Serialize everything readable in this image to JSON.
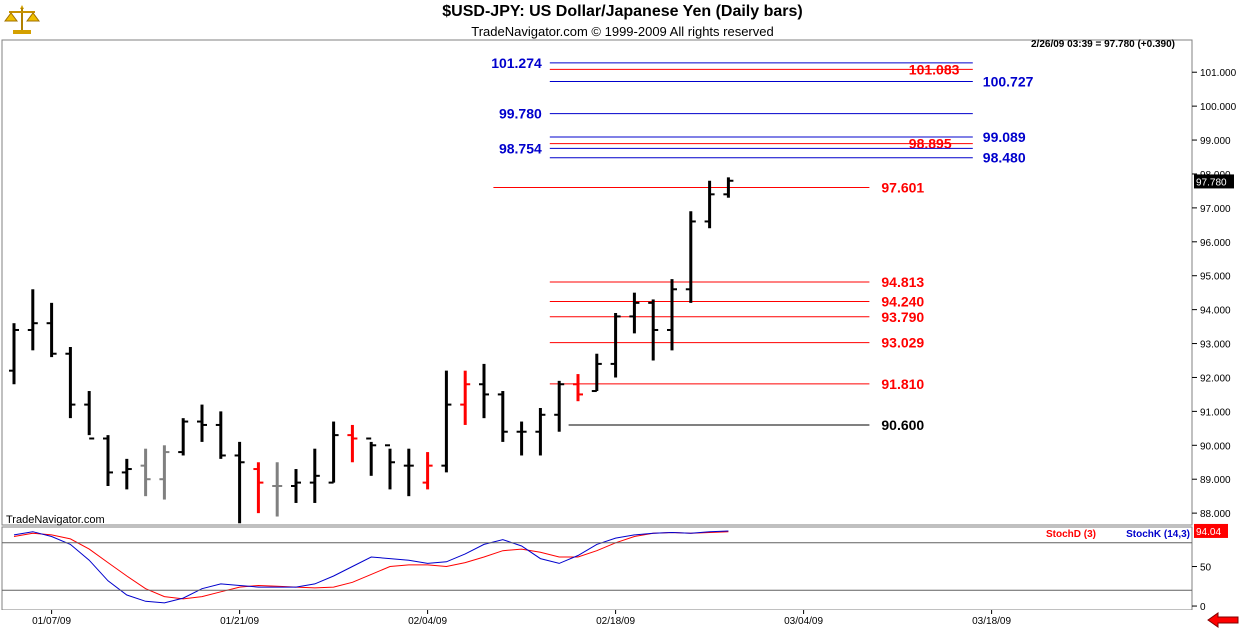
{
  "header": {
    "title": "$USD-JPY:  US Dollar/Japanese Yen  (Daily bars)",
    "copyright": "TradeNavigator.com © 1999-2009 All rights reserved",
    "quote": "2/26/09 03:39 = 97.780 (+0.390)",
    "watermark": "TradeNavigator.com",
    "logo_icon": "scale-icon"
  },
  "colors": {
    "up_bar": "#000000",
    "down_bar": "#000000",
    "red_bar": "#ff0000",
    "gray_bar": "#808080",
    "level_red": "#ff0000",
    "level_blue": "#0000cc",
    "level_black": "#000000",
    "stoch_d": "#ff0000",
    "stoch_k": "#0000cc"
  },
  "chart_data": [
    {
      "type": "ohlc",
      "name": "price",
      "ylim": [
        87.65,
        101.95
      ],
      "ytick_labels": [
        "88.000",
        "89.000",
        "90.000",
        "91.000",
        "92.000",
        "93.000",
        "94.000",
        "95.000",
        "96.000",
        "97.000",
        "98.000",
        "99.000",
        "100.000",
        "101.000"
      ],
      "yticks": [
        88,
        89,
        90,
        91,
        92,
        93,
        94,
        95,
        96,
        97,
        98,
        99,
        100,
        101
      ],
      "last_price_label": "97.780",
      "last_price": 97.78,
      "xtick_labels": [
        "01/07/09",
        "01/21/09",
        "02/04/09",
        "02/18/09",
        "03/04/09",
        "03/18/09"
      ],
      "xtick_index": [
        2,
        12,
        22,
        32,
        42,
        52
      ],
      "bars": [
        {
          "o": 92.2,
          "h": 93.6,
          "l": 91.8,
          "c": 93.4,
          "color": "black"
        },
        {
          "o": 93.4,
          "h": 94.6,
          "l": 92.8,
          "c": 93.6,
          "color": "black"
        },
        {
          "o": 93.6,
          "h": 94.2,
          "l": 92.6,
          "c": 92.7,
          "color": "black"
        },
        {
          "o": 92.7,
          "h": 92.9,
          "l": 90.8,
          "c": 91.2,
          "color": "black"
        },
        {
          "o": 91.2,
          "h": 91.6,
          "l": 90.3,
          "c": 90.2,
          "color": "black"
        },
        {
          "o": 90.2,
          "h": 90.3,
          "l": 88.8,
          "c": 89.2,
          "color": "black"
        },
        {
          "o": 89.2,
          "h": 89.6,
          "l": 88.7,
          "c": 89.3,
          "color": "black"
        },
        {
          "o": 89.4,
          "h": 89.9,
          "l": 88.5,
          "c": 89.0,
          "color": "gray"
        },
        {
          "o": 89.0,
          "h": 90.0,
          "l": 88.4,
          "c": 89.8,
          "color": "gray"
        },
        {
          "o": 89.8,
          "h": 90.8,
          "l": 89.7,
          "c": 90.7,
          "color": "black"
        },
        {
          "o": 90.7,
          "h": 91.2,
          "l": 90.1,
          "c": 90.6,
          "color": "black"
        },
        {
          "o": 90.6,
          "h": 91.0,
          "l": 89.6,
          "c": 89.7,
          "color": "black"
        },
        {
          "o": 89.7,
          "h": 90.1,
          "l": 87.7,
          "c": 89.5,
          "color": "black"
        },
        {
          "o": 89.3,
          "h": 89.5,
          "l": 88.0,
          "c": 88.9,
          "color": "red"
        },
        {
          "o": 88.8,
          "h": 89.5,
          "l": 87.9,
          "c": 88.8,
          "color": "gray"
        },
        {
          "o": 88.8,
          "h": 89.3,
          "l": 88.3,
          "c": 88.9,
          "color": "black"
        },
        {
          "o": 88.9,
          "h": 89.9,
          "l": 88.3,
          "c": 89.1,
          "color": "black"
        },
        {
          "o": 88.9,
          "h": 90.7,
          "l": 88.9,
          "c": 90.3,
          "color": "black"
        },
        {
          "o": 90.3,
          "h": 90.6,
          "l": 89.5,
          "c": 90.2,
          "color": "red"
        },
        {
          "o": 90.2,
          "h": 90.1,
          "l": 89.1,
          "c": 90.0,
          "color": "black"
        },
        {
          "o": 90.0,
          "h": 89.9,
          "l": 88.7,
          "c": 89.5,
          "color": "black"
        },
        {
          "o": 89.4,
          "h": 89.9,
          "l": 88.5,
          "c": 89.4,
          "color": "black"
        },
        {
          "o": 88.9,
          "h": 89.8,
          "l": 88.7,
          "c": 89.4,
          "color": "red"
        },
        {
          "o": 89.4,
          "h": 92.2,
          "l": 89.2,
          "c": 91.2,
          "color": "black"
        },
        {
          "o": 91.2,
          "h": 92.2,
          "l": 90.6,
          "c": 91.8,
          "color": "red"
        },
        {
          "o": 91.8,
          "h": 92.4,
          "l": 90.8,
          "c": 91.5,
          "color": "black"
        },
        {
          "o": 91.5,
          "h": 91.6,
          "l": 90.1,
          "c": 90.4,
          "color": "black"
        },
        {
          "o": 90.4,
          "h": 90.7,
          "l": 89.7,
          "c": 90.4,
          "color": "black"
        },
        {
          "o": 90.4,
          "h": 91.1,
          "l": 89.7,
          "c": 90.9,
          "color": "black"
        },
        {
          "o": 90.9,
          "h": 91.9,
          "l": 90.4,
          "c": 91.8,
          "color": "black"
        },
        {
          "o": 91.8,
          "h": 92.1,
          "l": 91.3,
          "c": 91.5,
          "color": "red"
        },
        {
          "o": 91.6,
          "h": 92.7,
          "l": 91.6,
          "c": 92.4,
          "color": "black"
        },
        {
          "o": 92.4,
          "h": 93.9,
          "l": 92.0,
          "c": 93.8,
          "color": "black"
        },
        {
          "o": 93.8,
          "h": 94.5,
          "l": 93.3,
          "c": 94.2,
          "color": "black"
        },
        {
          "o": 94.2,
          "h": 94.3,
          "l": 92.5,
          "c": 93.4,
          "color": "black"
        },
        {
          "o": 93.4,
          "h": 94.9,
          "l": 92.8,
          "c": 94.6,
          "color": "black"
        },
        {
          "o": 94.6,
          "h": 96.9,
          "l": 94.2,
          "c": 96.6,
          "color": "black"
        },
        {
          "o": 96.6,
          "h": 97.8,
          "l": 96.4,
          "c": 97.4,
          "color": "black"
        },
        {
          "o": 97.4,
          "h": 97.9,
          "l": 97.3,
          "c": 97.8,
          "color": "black"
        }
      ]
    },
    {
      "type": "line",
      "name": "stochastic",
      "ylim": [
        -5,
        100
      ],
      "ytick_labels": [
        "0",
        "50"
      ],
      "yticks": [
        0,
        50
      ],
      "ref_lines": [
        80,
        20
      ],
      "last_value_label": "94.04",
      "legend": [
        "StochD (3)",
        "StochK (14,3)"
      ],
      "series": [
        {
          "name": "StochD (3)",
          "values": [
            88,
            92,
            90,
            85,
            72,
            55,
            38,
            22,
            12,
            9,
            12,
            18,
            24,
            26,
            25,
            24,
            23,
            24,
            30,
            40,
            50,
            52,
            52,
            50,
            55,
            62,
            70,
            72,
            68,
            62,
            62,
            70,
            80,
            88,
            92,
            93,
            92,
            93,
            94
          ]
        },
        {
          "name": "StochK (14,3)",
          "values": [
            90,
            94,
            88,
            78,
            58,
            32,
            14,
            6,
            4,
            10,
            22,
            28,
            26,
            24,
            24,
            24,
            28,
            38,
            50,
            62,
            60,
            58,
            54,
            56,
            66,
            78,
            84,
            76,
            60,
            54,
            64,
            78,
            86,
            90,
            92,
            93,
            92,
            94,
            95
          ]
        }
      ]
    }
  ],
  "levels": [
    {
      "value": 101.274,
      "label": "101.274",
      "color": "blue",
      "x1": 28.5,
      "x2": 51.0,
      "label_side": "left"
    },
    {
      "value": 101.083,
      "label": "101.083",
      "color": "red",
      "x1": 28.5,
      "x2": 51.0,
      "label_side": "inside"
    },
    {
      "value": 100.727,
      "label": "100.727",
      "color": "blue",
      "x1": 28.5,
      "x2": 51.0,
      "label_side": "right"
    },
    {
      "value": 99.78,
      "label": "99.780",
      "color": "blue",
      "x1": 28.5,
      "x2": 51.0,
      "label_side": "left"
    },
    {
      "value": 99.089,
      "label": "99.089",
      "color": "blue",
      "x1": 28.5,
      "x2": 51.0,
      "label_side": "right"
    },
    {
      "value": 98.895,
      "label": "98.895",
      "color": "red",
      "x1": 28.5,
      "x2": 51.0,
      "label_side": "inside"
    },
    {
      "value": 98.754,
      "label": "98.754",
      "color": "blue",
      "x1": 28.5,
      "x2": 51.0,
      "label_side": "left"
    },
    {
      "value": 98.48,
      "label": "98.480",
      "color": "blue",
      "x1": 28.5,
      "x2": 51.0,
      "label_side": "right"
    },
    {
      "value": 97.601,
      "label": "97.601",
      "color": "red",
      "x1": 25.5,
      "x2": 45.5,
      "label_side": "end"
    },
    {
      "value": 94.813,
      "label": "94.813",
      "color": "red",
      "x1": 28.5,
      "x2": 45.5,
      "label_side": "end"
    },
    {
      "value": 94.24,
      "label": "94.240",
      "color": "red",
      "x1": 28.5,
      "x2": 45.5,
      "label_side": "end"
    },
    {
      "value": 93.79,
      "label": "93.790",
      "color": "red",
      "x1": 28.5,
      "x2": 45.5,
      "label_side": "end"
    },
    {
      "value": 93.029,
      "label": "93.029",
      "color": "red",
      "x1": 28.5,
      "x2": 45.5,
      "label_side": "end"
    },
    {
      "value": 91.81,
      "label": "91.810",
      "color": "red",
      "x1": 28.5,
      "x2": 45.5,
      "label_side": "end"
    },
    {
      "value": 90.6,
      "label": "90.600",
      "color": "black",
      "x1": 29.5,
      "x2": 45.5,
      "label_side": "end"
    }
  ],
  "nav": {
    "back_icon": "left-arrow-icon"
  }
}
